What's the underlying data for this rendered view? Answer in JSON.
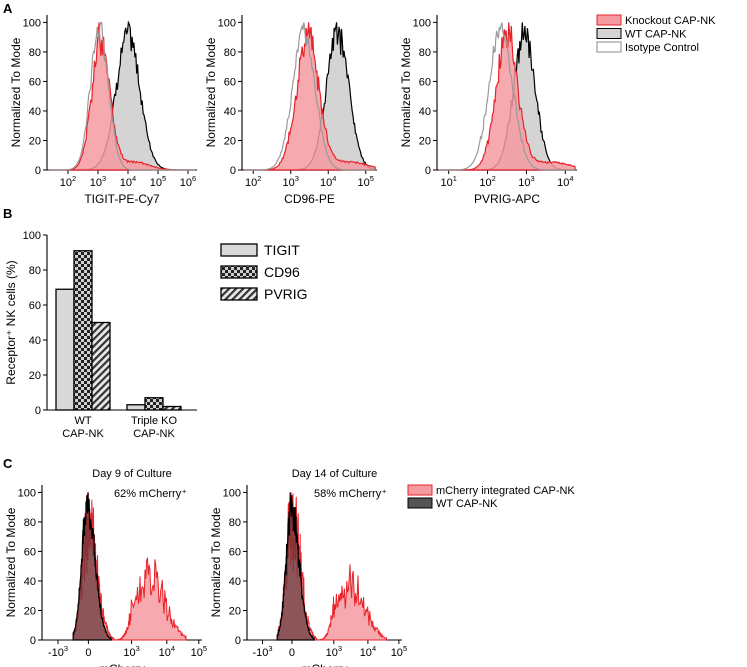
{
  "panel_labels": {
    "a": "A",
    "b": "B",
    "c": "C"
  },
  "colors": {
    "knockout": "#e8232a",
    "knockout_fill": "#f49aa0",
    "wt_fill": "#d4d4d4",
    "isotype": "#9a9a9a",
    "bar_fill": "#d9d9d9"
  },
  "chart_data": [
    {
      "id": "A1",
      "type": "area",
      "title": "",
      "xlabel": "TIGIT-PE-Cy7",
      "ylabel": "Normalized To Mode",
      "xscale": "log",
      "xlim": [
        1.3,
        6.3
      ],
      "ylim": [
        0,
        105
      ],
      "xticks": [
        {
          "v": 2,
          "b": "10",
          "e": "2"
        },
        {
          "v": 3,
          "b": "10",
          "e": "3"
        },
        {
          "v": 4,
          "b": "10",
          "e": "4"
        },
        {
          "v": 5,
          "b": "10",
          "e": "5"
        },
        {
          "v": 6,
          "b": "10",
          "e": "6"
        }
      ],
      "yticks": [
        0,
        20,
        40,
        60,
        80,
        100
      ],
      "series": [
        {
          "name": "Isotype Control",
          "mu": 3.05,
          "sigma": 0.3
        },
        {
          "name": "Knockout CAP-NK",
          "mu": 3.1,
          "sigma": 0.3
        },
        {
          "name": "WT CAP-NK",
          "mu": 4.0,
          "sigma": 0.4
        }
      ],
      "legend": {
        "position": "top-right",
        "entries": [
          {
            "label": "Knockout CAP-NK",
            "style": "red"
          },
          {
            "label": "WT CAP-NK",
            "style": "gray"
          },
          {
            "label": "Isotype Control",
            "style": "white"
          }
        ]
      }
    },
    {
      "id": "A2",
      "type": "area",
      "xlabel": "CD96-PE",
      "ylabel": "Normalized To Mode",
      "xscale": "log",
      "xlim": [
        1.7,
        5.3
      ],
      "ylim": [
        0,
        105
      ],
      "xticks": [
        {
          "v": 2,
          "b": "10",
          "e": "2"
        },
        {
          "v": 3,
          "b": "10",
          "e": "3"
        },
        {
          "v": 4,
          "b": "10",
          "e": "4"
        },
        {
          "v": 5,
          "b": "10",
          "e": "5"
        }
      ],
      "yticks": [
        0,
        20,
        40,
        60,
        80,
        100
      ],
      "series": [
        {
          "name": "Isotype Control",
          "mu": 3.35,
          "sigma": 0.3
        },
        {
          "name": "Knockout CAP-NK",
          "mu": 3.45,
          "sigma": 0.3
        },
        {
          "name": "WT CAP-NK",
          "mu": 4.25,
          "sigma": 0.3
        }
      ]
    },
    {
      "id": "A3",
      "type": "area",
      "xlabel": "PVRIG-APC",
      "ylabel": "Normalized To Mode",
      "xscale": "log",
      "xlim": [
        0.7,
        4.3
      ],
      "ylim": [
        0,
        105
      ],
      "xticks": [
        {
          "v": 1,
          "b": "10",
          "e": "1"
        },
        {
          "v": 2,
          "b": "10",
          "e": "2"
        },
        {
          "v": 3,
          "b": "10",
          "e": "3"
        },
        {
          "v": 4,
          "b": "10",
          "e": "4"
        }
      ],
      "yticks": [
        0,
        20,
        40,
        60,
        80,
        100
      ],
      "series": [
        {
          "name": "Isotype Control",
          "mu": 2.35,
          "sigma": 0.3
        },
        {
          "name": "Knockout CAP-NK",
          "mu": 2.5,
          "sigma": 0.28
        },
        {
          "name": "WT CAP-NK",
          "mu": 2.95,
          "sigma": 0.28
        }
      ]
    },
    {
      "id": "B",
      "type": "bar",
      "xlabel": "",
      "ylabel": "Receptor⁺ NK cells (%)",
      "ylim": [
        0,
        100
      ],
      "yticks": [
        0,
        20,
        40,
        60,
        80,
        100
      ],
      "categories": [
        [
          "WT",
          "CAP-NK"
        ],
        [
          "Triple KO",
          "CAP-NK"
        ]
      ],
      "series": [
        {
          "name": "TIGIT",
          "values": [
            69,
            3
          ]
        },
        {
          "name": "CD96",
          "values": [
            91,
            7
          ]
        },
        {
          "name": "PVRIG",
          "values": [
            50,
            2
          ]
        }
      ],
      "legend": {
        "position": "right"
      }
    },
    {
      "id": "C1",
      "type": "area",
      "title": "Day 9 of Culture",
      "annotation": "62% mCherry⁺",
      "xlabel": "mCherry",
      "ylabel": "Normalized To Mode",
      "xscale": "biexponential",
      "ylim": [
        0,
        105
      ],
      "xticks": [
        {
          "b": "-10",
          "e": "3"
        },
        {
          "b": "0",
          "e": ""
        },
        {
          "b": "10",
          "e": "3"
        },
        {
          "b": "10",
          "e": "4"
        },
        {
          "b": "10",
          "e": "5"
        }
      ],
      "yticks": [
        0,
        20,
        40,
        60,
        80,
        100
      ],
      "series": [
        {
          "name": "WT CAP-NK",
          "mu": -0.1,
          "sigma": 0.22
        },
        {
          "name": "mCherry integrated CAP-NK",
          "negative_fraction": 0.38,
          "mu_neg": 0.0,
          "mu_pos": 3.5,
          "sigma": 0.28
        }
      ],
      "legend": {
        "position": "top-right",
        "entries": [
          {
            "label": "mCherry integrated CAP-NK",
            "style": "red"
          },
          {
            "label": "WT CAP-NK",
            "style": "dark"
          }
        ]
      }
    },
    {
      "id": "C2",
      "type": "area",
      "title": "Day 14 of Culture",
      "annotation": "58% mCherry⁺",
      "xlabel": "mCherry",
      "ylabel": "Normalized To Mode",
      "xscale": "biexponential",
      "ylim": [
        0,
        105
      ],
      "xticks": [
        {
          "b": "-10",
          "e": "3"
        },
        {
          "b": "0",
          "e": ""
        },
        {
          "b": "10",
          "e": "3"
        },
        {
          "b": "10",
          "e": "4"
        },
        {
          "b": "10",
          "e": "5"
        }
      ],
      "yticks": [
        0,
        20,
        40,
        60,
        80,
        100
      ],
      "series": [
        {
          "name": "WT CAP-NK",
          "mu": -0.05,
          "sigma": 0.22
        },
        {
          "name": "mCherry integrated CAP-NK",
          "negative_fraction": 0.42,
          "mu_neg": 0.0,
          "mu_pos": 3.45,
          "sigma": 0.28
        }
      ]
    }
  ]
}
